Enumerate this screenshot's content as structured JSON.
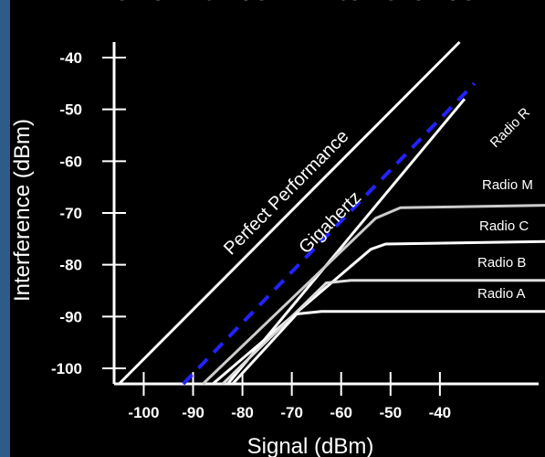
{
  "chart_data": {
    "type": "line",
    "title": "Performance in Interference",
    "xlabel": "Signal (dBm)",
    "ylabel": "Interference (dBm)",
    "xlim": [
      -106,
      -20
    ],
    "ylim": [
      -103,
      -37
    ],
    "x_ticks": [
      -100,
      -90,
      -80,
      -70,
      -60,
      -50,
      -40
    ],
    "y_ticks": [
      -40,
      -50,
      -60,
      -70,
      -80,
      -90,
      -100
    ],
    "x_tick_labels": [
      "-100",
      "-90",
      "-80",
      "-70",
      "-60",
      "-50",
      "-40"
    ],
    "y_tick_labels": [
      "-40",
      "-50",
      "-60",
      "-70",
      "-80",
      "-90",
      "-100"
    ],
    "grid": false,
    "series": [
      {
        "name": "Perfect Performance",
        "color": "#ffffff",
        "dash": false,
        "x": [
          -105,
          -36
        ],
        "y": [
          -103,
          -37
        ]
      },
      {
        "name": "Gigahertz",
        "color": "#2222ff",
        "dash": true,
        "x": [
          -92,
          -33
        ],
        "y": [
          -103,
          -45
        ]
      },
      {
        "name": "Radio R",
        "color": "#ffffff",
        "dash": false,
        "x": [
          -83,
          -35
        ],
        "y": [
          -103,
          -48
        ]
      },
      {
        "name": "Radio M",
        "color": "#cccccc",
        "dash": false,
        "x": [
          -88,
          -53,
          -48,
          -18
        ],
        "y": [
          -103,
          -71,
          -69,
          -68.5
        ]
      },
      {
        "name": "Radio C",
        "color": "#ffffff",
        "dash": false,
        "x": [
          -86,
          -54,
          -51,
          -18
        ],
        "y": [
          -103,
          -77,
          -76,
          -75.5
        ]
      },
      {
        "name": "Radio B",
        "color": "#dddddd",
        "dash": false,
        "x": [
          -84,
          -63,
          -58,
          -18
        ],
        "y": [
          -103,
          -83.5,
          -83,
          -83
        ]
      },
      {
        "name": "Radio A",
        "color": "#ffffff",
        "dash": false,
        "x": [
          -82,
          -69,
          -64,
          -18
        ],
        "y": [
          -103,
          -89.5,
          -89,
          -89
        ]
      }
    ],
    "annotations": [
      {
        "text": "Perfect Performance",
        "series": "Perfect Performance"
      },
      {
        "text": "Gigahertz",
        "series": "Gigahertz"
      },
      {
        "text": "Radio R",
        "series": "Radio R"
      },
      {
        "text": "Radio M",
        "series": "Radio M"
      },
      {
        "text": "Radio C",
        "series": "Radio C"
      },
      {
        "text": "Radio B",
        "series": "Radio B"
      },
      {
        "text": "Radio A",
        "series": "Radio A"
      }
    ]
  }
}
